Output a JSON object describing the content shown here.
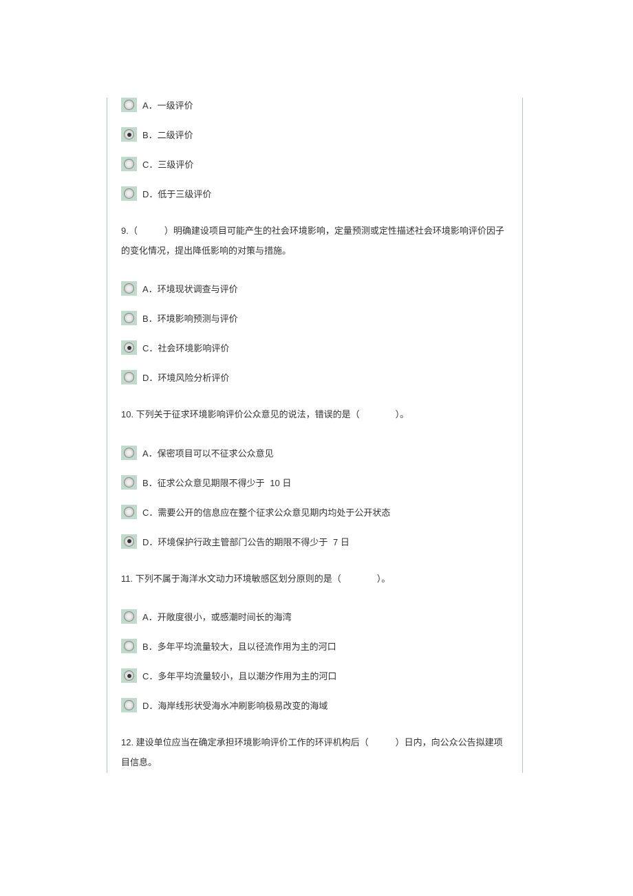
{
  "colors": {
    "border": "#a8c8d8",
    "radio_bg": "#c0dbcb",
    "text": "#333333",
    "page_bg": "#ffffff"
  },
  "typography": {
    "font_family": "Microsoft YaHei, SimSun, sans-serif",
    "font_size_pt": 10
  },
  "q8_options": [
    {
      "label": "A．一级评价",
      "selected": false
    },
    {
      "label": "B．二级评价",
      "selected": true
    },
    {
      "label": "C．三级评价",
      "selected": false
    },
    {
      "label": "D．低于三级评价",
      "selected": false
    }
  ],
  "q9": {
    "text": "9.（　　　）明确建设项目可能产生的社会环境影响，定量预测或定性描述社会环境影响评价因子的变化情况，提出降低影响的对策与措施。",
    "options": [
      {
        "label": "A．环境现状调查与评价",
        "selected": false
      },
      {
        "label": "B．环境影响预测与评价",
        "selected": false
      },
      {
        "label": "C．社会环境影响评价",
        "selected": true
      },
      {
        "label": "D．环境风险分析评价",
        "selected": false
      }
    ]
  },
  "q10": {
    "text_pre": "10. 下列关于征求环境影响评价公众意见的说法，错误的是（　　　　）。",
    "options": [
      {
        "label": "A．保密项目可以不征求公众意见",
        "selected": false
      },
      {
        "label_pre": "B．征求公众意见期限不得少于",
        "label_num": "10 日",
        "selected": false
      },
      {
        "label": "C．需要公开的信息应在整个征求公众意见期内均处于公开状态",
        "selected": false
      },
      {
        "label_pre": "D．环境保护行政主管部门公告的期限不得少于",
        "label_num": "7 日",
        "selected": true
      }
    ]
  },
  "q11": {
    "text": "11. 下列不属于海洋水文动力环境敏感区划分原则的是（　　　　）。",
    "options": [
      {
        "label": "A．开敞度很小，或感潮时间长的海湾",
        "selected": false
      },
      {
        "label": "B．多年平均流量较大，且以径流作用为主的河口",
        "selected": false
      },
      {
        "label": "C．多年平均流量较小，且以潮汐作用为主的河口",
        "selected": true
      },
      {
        "label": "D．海岸线形状受海水冲刷影响极易改变的海域",
        "selected": false
      }
    ]
  },
  "q12": {
    "text": "12. 建设单位应当在确定承担环境影响评价工作的环评机构后（　　　）日内，向公众公告拟建项目信息。"
  }
}
